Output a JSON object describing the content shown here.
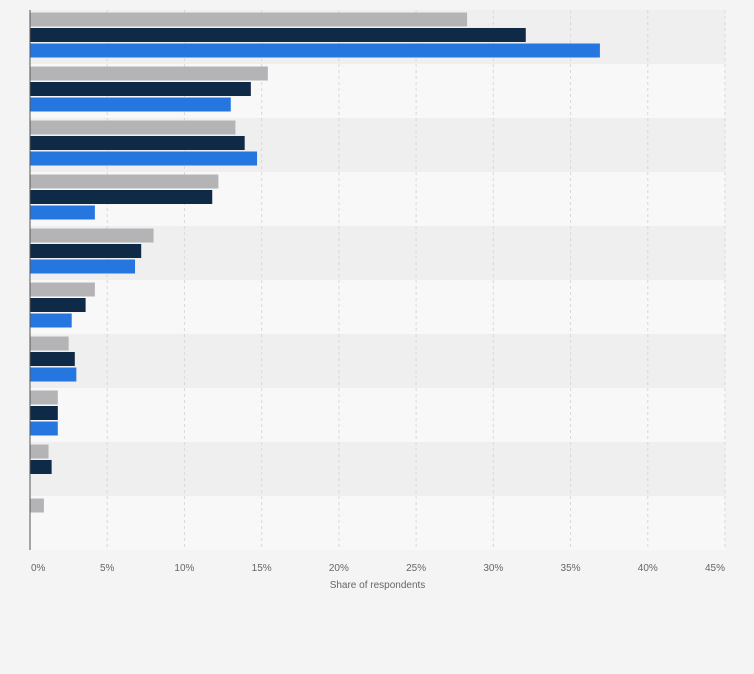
{
  "chart_data": {
    "type": "bar",
    "orientation": "horizontal",
    "categories": [
      "",
      "",
      "",
      "",
      "",
      "",
      "",
      "",
      "",
      ""
    ],
    "series": [
      {
        "color": "#b4b4b6",
        "values": [
          28.3,
          15.4,
          13.3,
          12.2,
          8.0,
          4.2,
          2.5,
          1.8,
          1.2,
          0.9
        ]
      },
      {
        "color": "#0e2a47",
        "values": [
          32.1,
          14.3,
          13.9,
          11.8,
          7.2,
          3.6,
          2.9,
          1.8,
          1.4,
          0
        ]
      },
      {
        "color": "#2576de",
        "values": [
          36.9,
          13.0,
          14.7,
          4.2,
          6.8,
          2.7,
          3.0,
          1.8,
          0,
          0
        ]
      }
    ],
    "xlim": [
      0,
      45
    ],
    "xticks": [
      "0%",
      "5%",
      "10%",
      "15%",
      "20%",
      "25%",
      "30%",
      "35%",
      "40%",
      "45%"
    ],
    "xlabel": "Share of respondents",
    "ylabel": "",
    "grid": true,
    "band_colors": [
      "#efefef",
      "#f8f8f8"
    ]
  }
}
